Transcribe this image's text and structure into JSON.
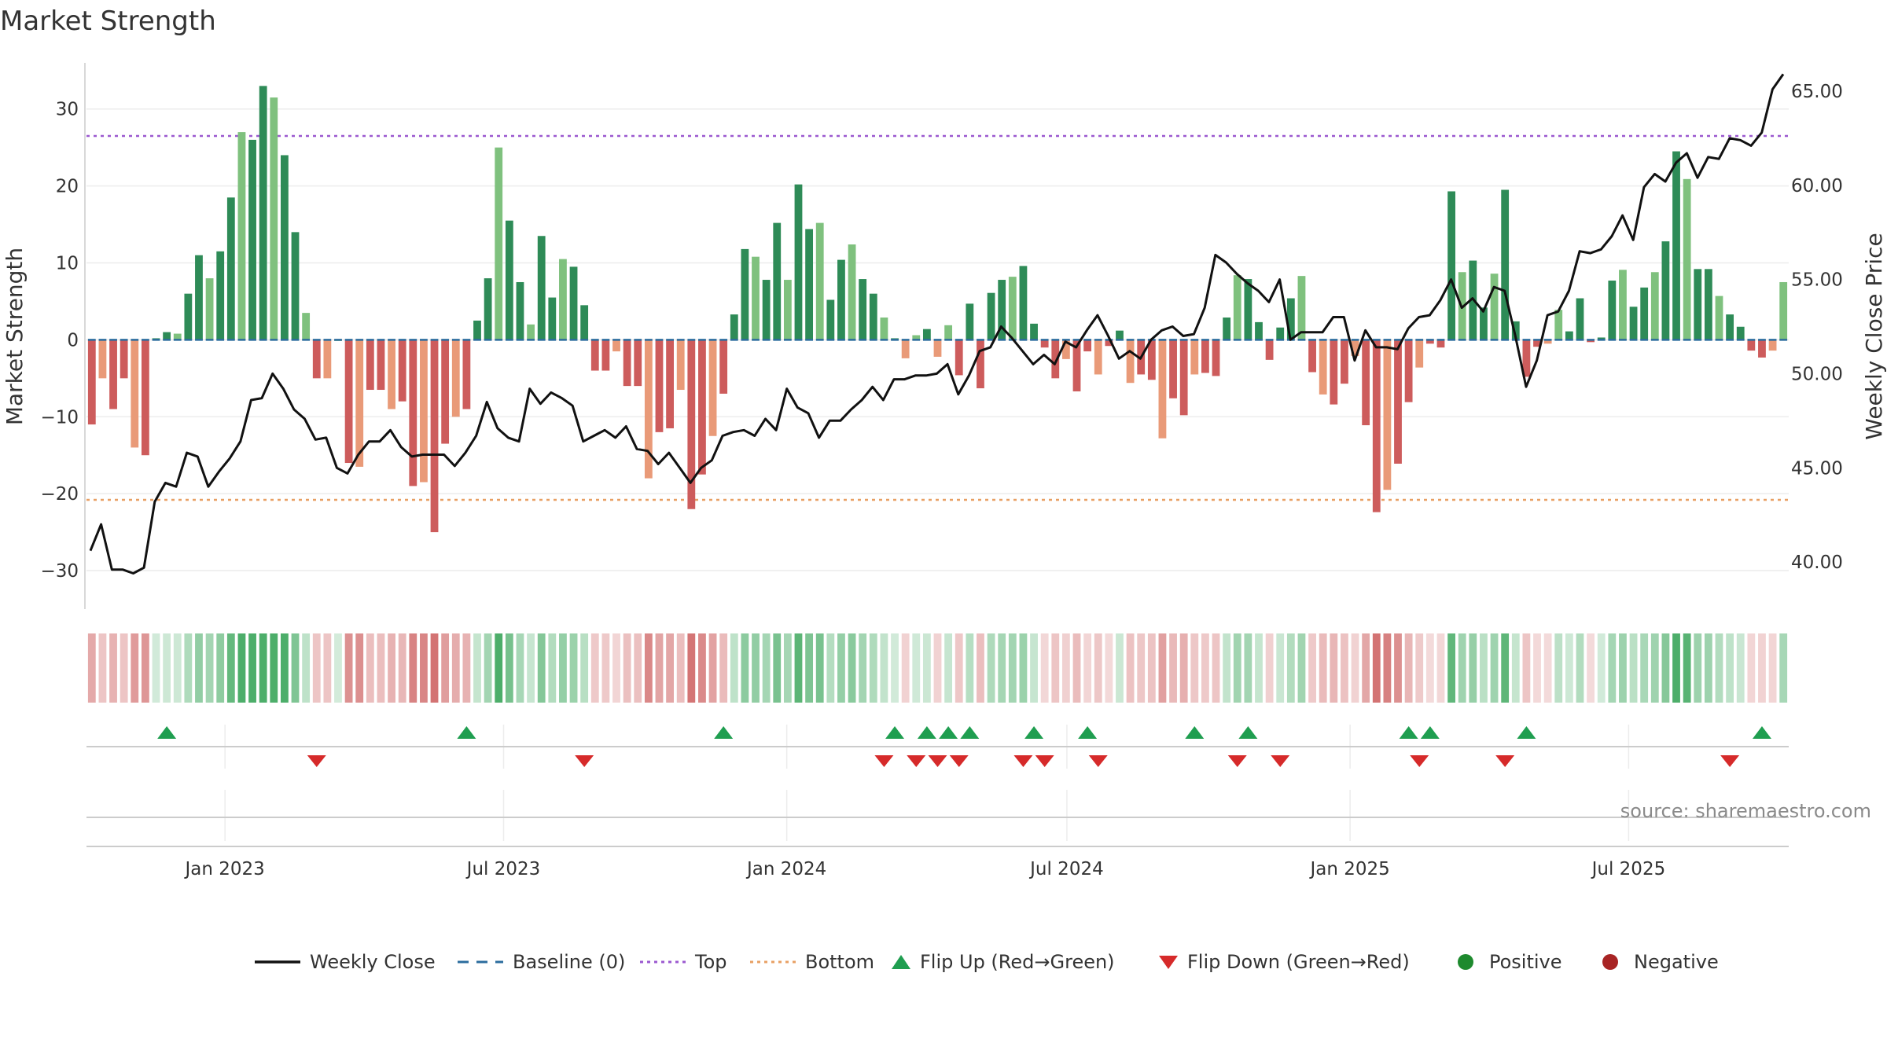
{
  "chart_data": {
    "type": "bar",
    "title": "Market Strength",
    "ylabel": "Market Strength",
    "y2label": "Weekly Close Price",
    "ylim": [
      -35,
      36
    ],
    "y2lim": [
      37.5,
      66.5
    ],
    "yticks": [
      -30,
      -20,
      -10,
      0,
      10,
      20,
      30
    ],
    "y2ticks": [
      40,
      45,
      50,
      55,
      60,
      65
    ],
    "y2tick_labels": [
      "40.00",
      "45.00",
      "50.00",
      "55.00",
      "60.00",
      "65.00"
    ],
    "date_range": [
      "2022-10-03",
      "2025-10-13"
    ],
    "xticks": [
      {
        "date": "2023-01-01",
        "label": "Jan 2023"
      },
      {
        "date": "2023-07-01",
        "label": "Jul 2023"
      },
      {
        "date": "2024-01-01",
        "label": "Jan 2024"
      },
      {
        "date": "2024-07-01",
        "label": "Jul 2024"
      },
      {
        "date": "2025-01-01",
        "label": "Jan 2025"
      },
      {
        "date": "2025-07-01",
        "label": "Jul 2025"
      }
    ],
    "top_line": 26.5,
    "bottom_line": -20.8,
    "strength": [
      -11,
      -5,
      -9,
      -5,
      -14,
      -15,
      0.2,
      1,
      0.8,
      6,
      11,
      8,
      11.5,
      18.5,
      27,
      26,
      33,
      31.5,
      24,
      14,
      3.5,
      -5,
      -5,
      0,
      -16,
      -16.5,
      -6.5,
      -6.5,
      -9,
      -8,
      -19,
      -18.5,
      -25,
      -13.5,
      -10,
      -9,
      2.5,
      8,
      25,
      15.5,
      7.5,
      2,
      13.5,
      5.5,
      10.5,
      9.5,
      4.5,
      -4,
      -4,
      -1.5,
      -6,
      -6,
      -18,
      -12,
      -11.5,
      -6.5,
      -22,
      -17.5,
      -12.5,
      -7,
      3.3,
      11.8,
      10.8,
      7.8,
      15.2,
      7.8,
      20.2,
      14.4,
      15.2,
      5.2,
      10.4,
      12.4,
      7.9,
      6,
      2.9,
      0.2,
      -2.4,
      0.6,
      1.4,
      -2.2,
      1.9,
      -4.6,
      4.7,
      -6.3,
      6.1,
      7.8,
      8.2,
      9.6,
      2.1,
      -1,
      -5,
      -2.5,
      -6.7,
      -1.5,
      -4.5,
      -0.8,
      1.2,
      -5.6,
      -4.5,
      -5.2,
      -12.8,
      -7.6,
      -9.8,
      -4.5,
      -4.3,
      -4.7,
      2.9,
      8.4,
      7.9,
      2.3,
      -2.6,
      1.6,
      5.4,
      8.3,
      -4.2,
      -7.1,
      -8.4,
      -5.7,
      -2.1,
      -11.1,
      -22.4,
      -19.5,
      -16.1,
      -8.1,
      -3.6,
      -0.5,
      -1,
      19.3,
      8.8,
      10.3,
      4.2,
      8.6,
      19.5,
      2.4,
      -4.8,
      -0.9,
      -0.5,
      3.9,
      1.1,
      5.4,
      -0.3,
      0.3,
      7.7,
      9.1,
      4.3,
      6.8,
      8.8,
      12.8,
      24.5,
      20.9,
      9.2,
      9.2,
      5.7,
      3.3,
      1.7,
      -1.4,
      -2.3,
      -1.4,
      7.5
    ],
    "close": [
      40.6,
      42,
      39.6,
      39.6,
      39.4,
      39.7,
      43.2,
      44.2,
      44,
      45.8,
      45.6,
      44,
      44.8,
      45.5,
      46.4,
      48.6,
      48.7,
      50,
      49.2,
      48.1,
      47.6,
      46.5,
      46.6,
      45,
      44.7,
      45.7,
      46.4,
      46.4,
      47,
      46.1,
      45.6,
      45.7,
      45.7,
      45.7,
      45.1,
      45.8,
      46.7,
      48.5,
      47.1,
      46.6,
      46.4,
      49.2,
      48.4,
      49,
      48.7,
      48.3,
      46.4,
      46.7,
      47,
      46.6,
      47.2,
      46,
      45.9,
      45.2,
      45.8,
      45,
      44.2,
      45,
      45.4,
      46.7,
      46.9,
      47,
      46.7,
      47.6,
      47,
      49.2,
      48.2,
      47.9,
      46.6,
      47.5,
      47.5,
      48.1,
      48.6,
      49.3,
      48.6,
      49.7,
      49.7,
      49.9,
      49.9,
      50,
      50.5,
      48.9,
      49.9,
      51.2,
      51.4,
      52.5,
      51.9,
      51.2,
      50.5,
      51,
      50.5,
      51.7,
      51.4,
      52.3,
      53.1,
      52,
      50.8,
      51.2,
      50.8,
      51.8,
      52.3,
      52.5,
      52,
      52.1,
      53.5,
      56.3,
      55.9,
      55.3,
      54.8,
      54.4,
      53.8,
      55,
      51.8,
      52.2,
      52.2,
      52.2,
      53,
      53,
      50.7,
      52.3,
      51.4,
      51.4,
      51.3,
      52.4,
      53,
      53.1,
      53.9,
      55,
      53.5,
      54,
      53.3,
      54.6,
      54.4,
      52,
      49.3,
      50.7,
      53.1,
      53.3,
      54.4,
      56.5,
      56.4,
      56.6,
      57.3,
      58.4,
      57.1,
      59.9,
      60.6,
      60.2,
      61.2,
      61.7,
      60.4,
      61.5,
      61.4,
      62.5,
      62.4,
      62.1,
      62.8,
      65.1,
      65.9
    ],
    "flip_up_weeks": [
      7,
      35,
      59,
      75,
      78,
      80,
      82,
      88,
      93,
      103,
      108,
      123,
      125,
      134,
      156
    ],
    "flip_down_weeks": [
      21,
      46,
      74,
      77,
      79,
      81,
      87,
      89,
      94,
      107,
      111,
      124,
      132,
      153
    ],
    "legend": [
      {
        "label": "Weekly Close",
        "kind": "line-solid",
        "color": "#111111"
      },
      {
        "label": "Baseline (0)",
        "kind": "line-dash",
        "color": "#2b6c9e"
      },
      {
        "label": "Top",
        "kind": "line-dot",
        "color": "#9b59d0"
      },
      {
        "label": "Bottom",
        "kind": "line-dot",
        "color": "#e8a064"
      },
      {
        "label": "Flip Up (Red→Green)",
        "kind": "tri-up",
        "color": "#1f9e50"
      },
      {
        "label": "Flip Down (Green→Red)",
        "kind": "tri-down",
        "color": "#d62a2a"
      },
      {
        "label": "Positive",
        "kind": "dot",
        "color": "#1e8a2e"
      },
      {
        "label": "Negative",
        "kind": "dot",
        "color": "#a82424"
      }
    ],
    "source": "source: sharemaestro.com"
  },
  "colors": {
    "pos_strong": "#2e8b57",
    "pos_light": "#7fc17e",
    "neg_strong": "#cd5c5c",
    "neg_light": "#e99a78",
    "flip_up": "#1f9e50",
    "flip_down": "#d62a2a",
    "close_line": "#111111",
    "baseline": "#2b6c9e",
    "top": "#9b59d0",
    "bottom": "#e8a064"
  }
}
